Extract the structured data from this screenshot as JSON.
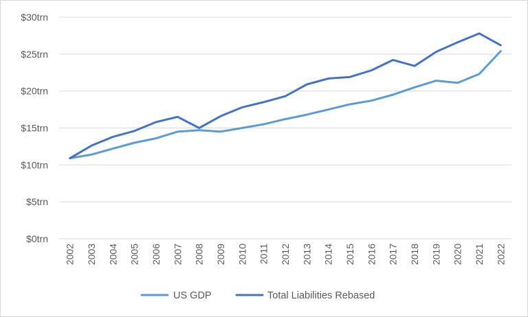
{
  "chart_data": {
    "type": "line",
    "title": "",
    "xlabel": "",
    "ylabel": "",
    "ylim": [
      0,
      30
    ],
    "y_ticks": [
      {
        "value": 0,
        "label": "$0trn"
      },
      {
        "value": 5,
        "label": "$5trn"
      },
      {
        "value": 10,
        "label": "$10trn"
      },
      {
        "value": 15,
        "label": "$15trn"
      },
      {
        "value": 20,
        "label": "$20trn"
      },
      {
        "value": 25,
        "label": "$25trn"
      },
      {
        "value": 30,
        "label": "$30trn"
      }
    ],
    "categories": [
      "2002",
      "2003",
      "2004",
      "2005",
      "2006",
      "2007",
      "2008",
      "2009",
      "2010",
      "2011",
      "2012",
      "2013",
      "2014",
      "2015",
      "2016",
      "2017",
      "2018",
      "2019",
      "2020",
      "2021",
      "2022"
    ],
    "grid": true,
    "legend_position": "bottom",
    "series": [
      {
        "name": "US GDP",
        "color": "#5b9bd5",
        "values": [
          10.9,
          11.4,
          12.2,
          13.0,
          13.6,
          14.5,
          14.7,
          14.5,
          15.0,
          15.5,
          16.2,
          16.8,
          17.5,
          18.2,
          18.7,
          19.5,
          20.5,
          21.4,
          21.1,
          22.3,
          25.4
        ]
      },
      {
        "name": "Total Liabilities Rebased",
        "color": "#4472c4",
        "values": [
          10.9,
          12.6,
          13.8,
          14.6,
          15.8,
          16.5,
          15.0,
          16.6,
          17.8,
          18.5,
          19.3,
          20.9,
          21.7,
          21.9,
          22.8,
          24.2,
          23.4,
          25.3,
          26.6,
          27.8,
          26.2
        ]
      }
    ]
  }
}
